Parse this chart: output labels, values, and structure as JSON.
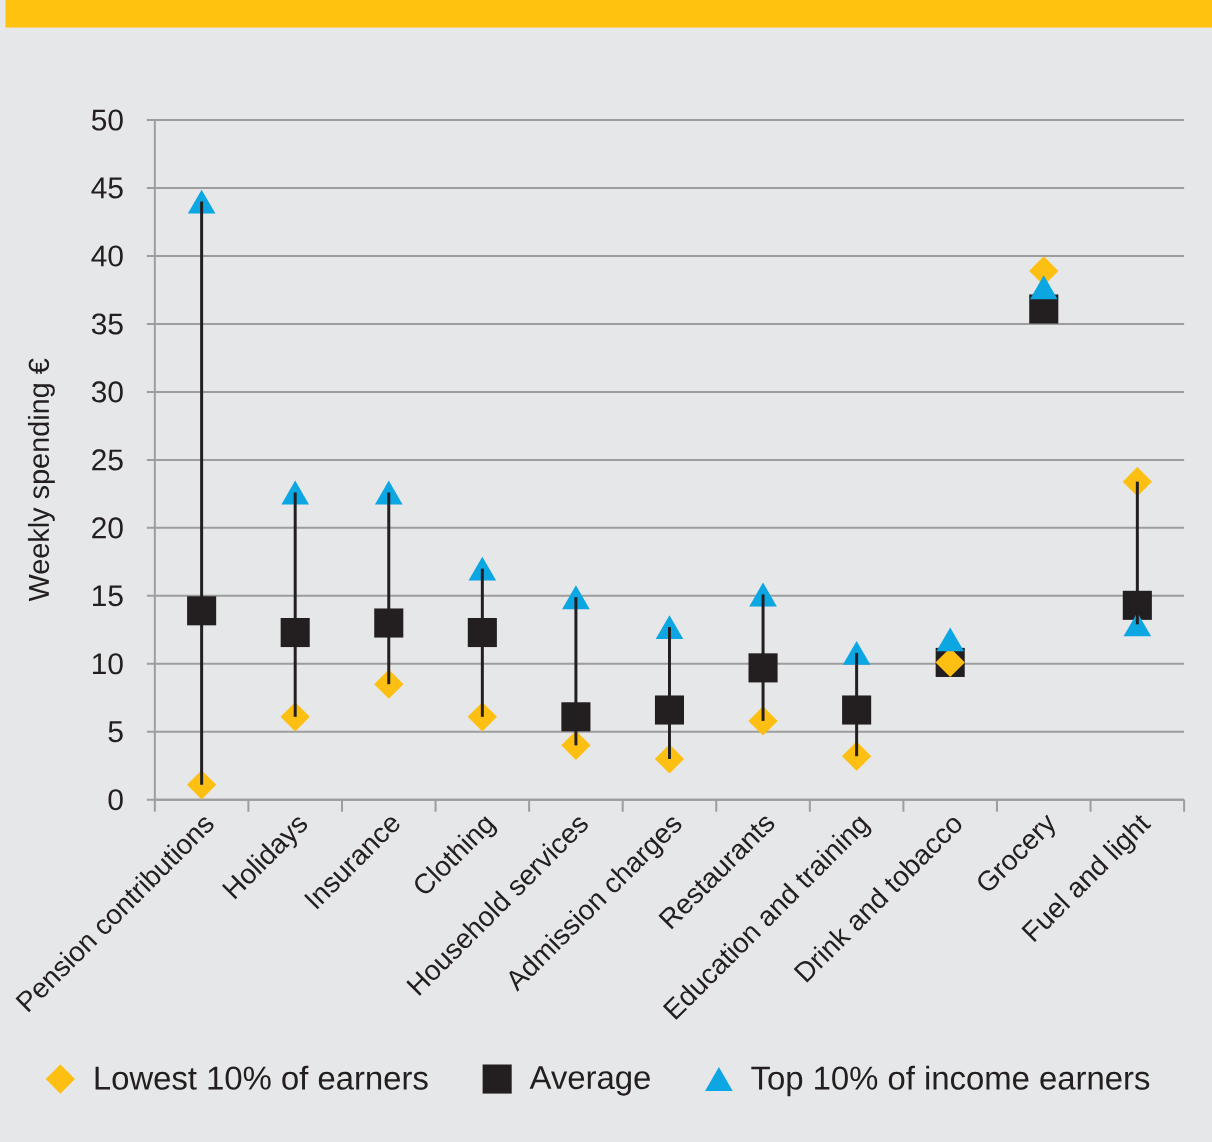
{
  "chart_data": {
    "type": "scatter",
    "ylabel": "Weekly spending €",
    "categories": [
      "Pension contributions",
      "Holidays",
      "Insurance",
      "Clothing",
      "Household services",
      "Admission charges",
      "Restaurants",
      "Education and training",
      "Drink and tobacco",
      "Grocery",
      "Fuel and light"
    ],
    "series": [
      {
        "name": "Lowest 10% of earners",
        "color": "#fdbf12",
        "marker": "diamond",
        "values": [
          1.1,
          6.1,
          8.5,
          6.1,
          4.0,
          3.0,
          5.8,
          3.2,
          10.1,
          38.9,
          23.4
        ]
      },
      {
        "name": "Average",
        "color": "#231f20",
        "marker": "square",
        "values": [
          13.9,
          12.3,
          13.0,
          12.3,
          6.1,
          6.6,
          9.7,
          6.6,
          10.1,
          36.1,
          14.3
        ]
      },
      {
        "name": "Top 10% of income earners",
        "color": "#0ca6e3",
        "marker": "triangle",
        "values": [
          44.0,
          22.6,
          22.6,
          17.0,
          14.9,
          12.7,
          15.1,
          10.8,
          11.8,
          37.7,
          12.9
        ]
      },
      {
        "type": "bar",
        "color": "#231f20",
        "base": [
          1.1,
          6.1,
          8.5,
          6.1,
          4.0,
          3.0,
          5.8,
          3.2,
          null,
          null,
          12.9
        ],
        "values": [
          42.9,
          16.5,
          14.1,
          10.9,
          10.9,
          9.7,
          9.3,
          7.6,
          null,
          null,
          10.5
        ]
      }
    ],
    "ylim": [
      0,
      50
    ],
    "yticks": [
      0,
      5,
      10,
      15,
      20,
      25,
      30,
      35,
      40,
      45,
      50
    ],
    "grid": "y",
    "legend": "bottom"
  }
}
